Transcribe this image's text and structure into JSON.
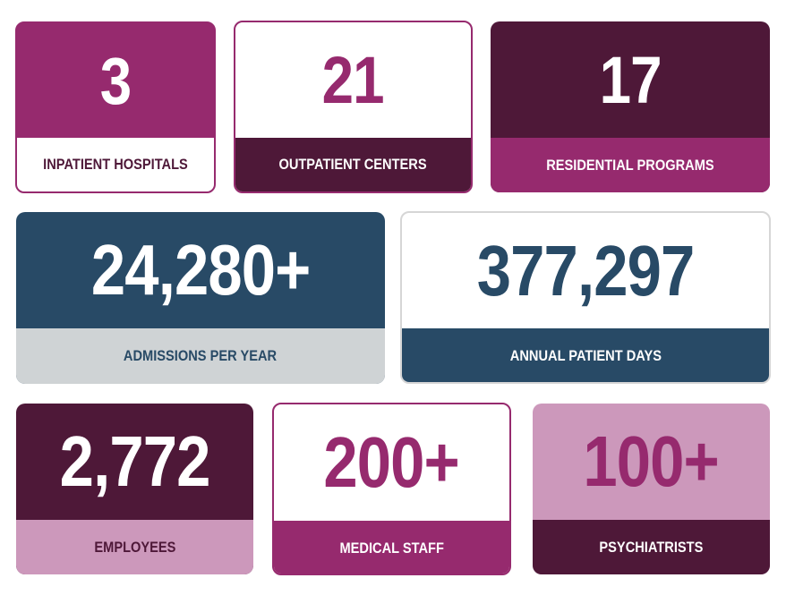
{
  "stats": [
    {
      "value": "3",
      "label": "INPATIENT HOSPITALS"
    },
    {
      "value": "21",
      "label": "OUTPATIENT CENTERS"
    },
    {
      "value": "17",
      "label": "RESIDENTIAL PROGRAMS"
    },
    {
      "value": "24,280+",
      "label": "ADMISSIONS PER YEAR"
    },
    {
      "value": "377,297",
      "label": "ANNUAL PATIENT DAYS"
    },
    {
      "value": "2,772",
      "label": "EMPLOYEES"
    },
    {
      "value": "200+",
      "label": "MEDICAL STAFF"
    },
    {
      "value": "100+",
      "label": "PSYCHIATRISTS"
    }
  ],
  "colors": {
    "magenta": "#962a6e",
    "plum": "#4e1838",
    "navy": "#284a66",
    "light_gray": "#cfd3d5",
    "pink": "#cc98bb",
    "white": "#ffffff"
  }
}
